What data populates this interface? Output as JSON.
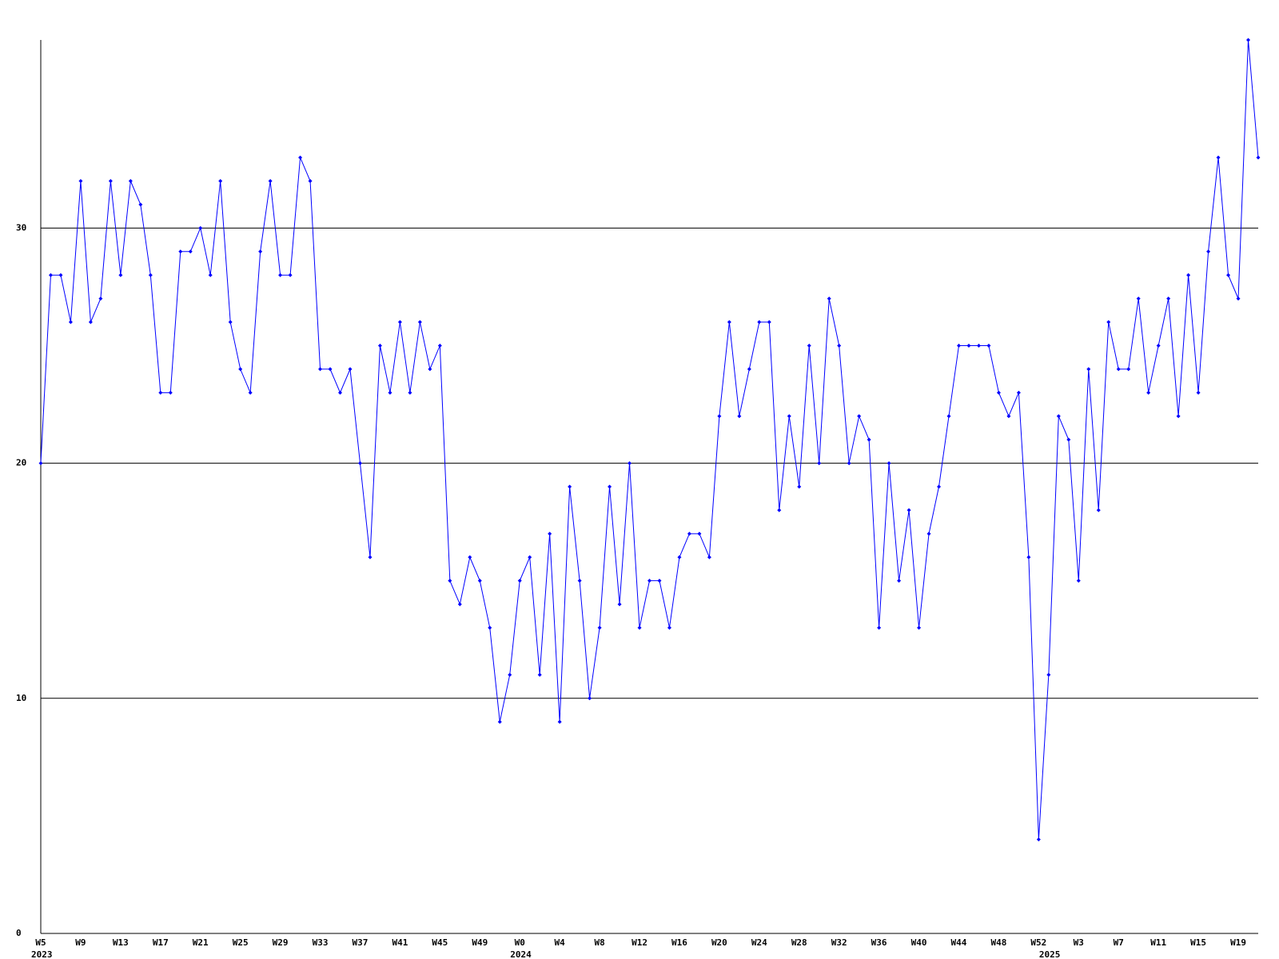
{
  "chart_data": {
    "type": "line",
    "color": "#0000ff",
    "grid": true,
    "ylim": [
      0,
      38
    ],
    "yticks": [
      0,
      10,
      20,
      30
    ],
    "categories": [
      "W5",
      null,
      null,
      null,
      "W9",
      null,
      null,
      null,
      "W13",
      null,
      null,
      null,
      "W17",
      null,
      null,
      null,
      "W21",
      null,
      null,
      null,
      "W25",
      null,
      null,
      null,
      "W29",
      null,
      null,
      null,
      "W33",
      null,
      null,
      null,
      "W37",
      null,
      null,
      null,
      "W41",
      null,
      null,
      null,
      "W45",
      null,
      null,
      null,
      "W49",
      null,
      null,
      null,
      "W0",
      null,
      null,
      null,
      "W4",
      null,
      null,
      null,
      "W8",
      null,
      null,
      null,
      "W12",
      null,
      null,
      null,
      "W16",
      null,
      null,
      null,
      "W20",
      null,
      null,
      null,
      "W24",
      null,
      null,
      null,
      "W28",
      null,
      null,
      null,
      "W32",
      null,
      null,
      null,
      "W36",
      null,
      null,
      null,
      "W40",
      null,
      null,
      null,
      "W44",
      null,
      null,
      null,
      "W48",
      null,
      null,
      null,
      "W52",
      null,
      null,
      null,
      "W3",
      null,
      null,
      null,
      "W7",
      null,
      null,
      null,
      "W11",
      null,
      null,
      null,
      "W15",
      null,
      null,
      null,
      "W19",
      null,
      null
    ],
    "years": [
      "2023",
      null,
      null,
      null,
      null,
      null,
      null,
      null,
      null,
      null,
      null,
      null,
      null,
      null,
      null,
      null,
      null,
      null,
      null,
      null,
      null,
      null,
      null,
      null,
      null,
      null,
      null,
      null,
      null,
      null,
      null,
      null,
      null,
      null,
      null,
      null,
      null,
      null,
      null,
      null,
      null,
      null,
      null,
      null,
      null,
      null,
      null,
      null,
      "2024",
      null,
      null,
      null,
      null,
      null,
      null,
      null,
      null,
      null,
      null,
      null,
      null,
      null,
      null,
      null,
      null,
      null,
      null,
      null,
      null,
      null,
      null,
      null,
      null,
      null,
      null,
      null,
      null,
      null,
      null,
      null,
      null,
      null,
      null,
      null,
      null,
      null,
      null,
      null,
      null,
      null,
      null,
      null,
      null,
      null,
      null,
      null,
      null,
      null,
      null,
      null,
      null,
      "2025",
      null,
      null,
      null,
      null,
      null,
      null,
      null,
      null,
      null,
      null,
      null,
      null,
      null,
      null,
      null,
      null,
      null,
      null,
      null,
      null,
      null
    ],
    "values": [
      20,
      28,
      28,
      26,
      32,
      26,
      27,
      32,
      28,
      32,
      31,
      28,
      23,
      23,
      29,
      29,
      30,
      28,
      32,
      26,
      24,
      23,
      29,
      32,
      28,
      28,
      33,
      32,
      24,
      24,
      23,
      24,
      20,
      16,
      25,
      23,
      26,
      23,
      26,
      24,
      25,
      15,
      14,
      16,
      15,
      13,
      9,
      11,
      15,
      16,
      11,
      17,
      9,
      19,
      15,
      10,
      13,
      19,
      14,
      20,
      13,
      15,
      15,
      13,
      16,
      17,
      17,
      16,
      22,
      26,
      22,
      24,
      26,
      26,
      18,
      22,
      19,
      25,
      20,
      27,
      25,
      20,
      22,
      21,
      13,
      20,
      15,
      18,
      13,
      17,
      19,
      22,
      25,
      25,
      25,
      25,
      23,
      22,
      23,
      16,
      4,
      11,
      22,
      21,
      15,
      24,
      18,
      26,
      24,
      24,
      27,
      23,
      25,
      27,
      22,
      28,
      23,
      29,
      33,
      28,
      27,
      38,
      33
    ]
  }
}
